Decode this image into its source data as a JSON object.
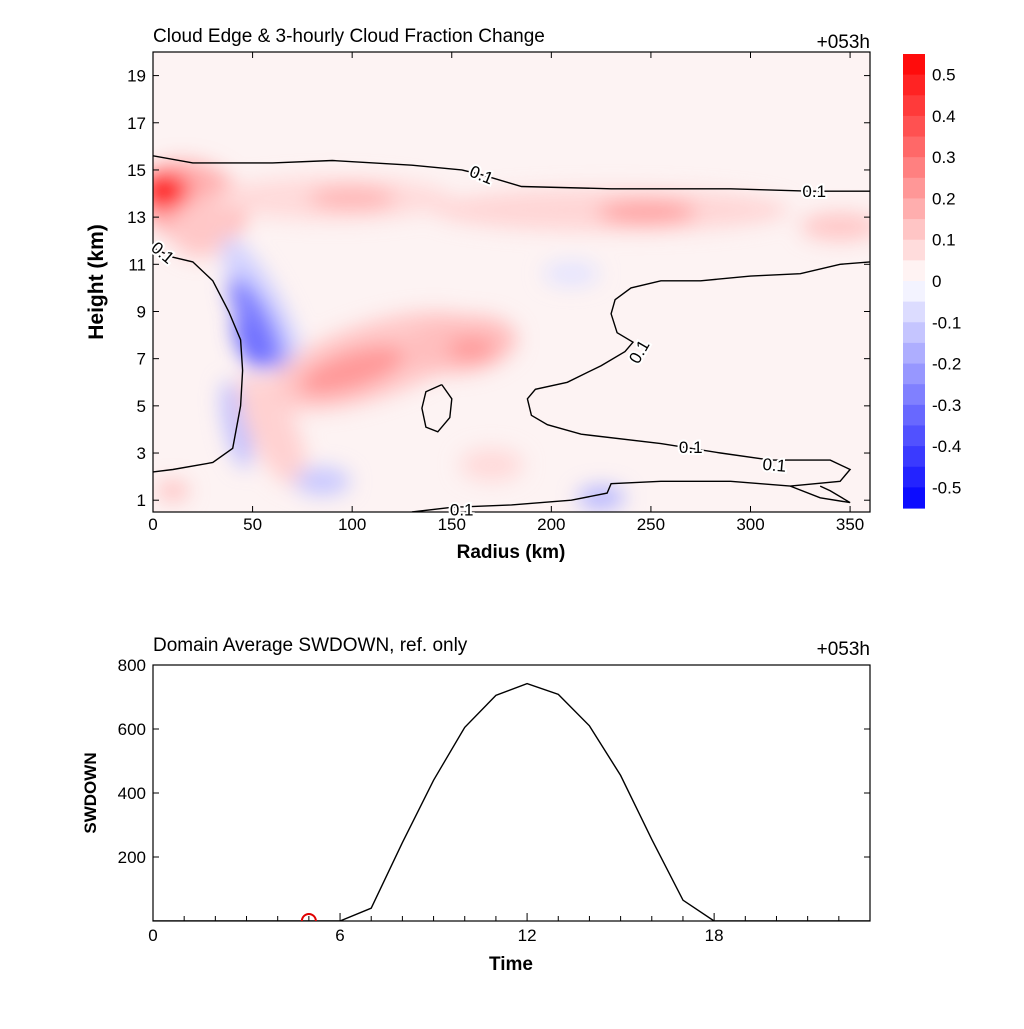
{
  "chart_data": [
    {
      "type": "heatmap",
      "title": "Cloud Edge & 3-hourly Cloud Fraction Change",
      "time_label": "+053h",
      "xlabel": "Radius (km)",
      "ylabel": "Height (km)",
      "xlim": [
        0,
        360
      ],
      "ylim": [
        0.5,
        20
      ],
      "x_ticks": [
        0,
        50,
        100,
        150,
        200,
        250,
        300,
        350
      ],
      "y_ticks": [
        1,
        3,
        5,
        7,
        9,
        11,
        13,
        15,
        17,
        19
      ],
      "colorbar": {
        "ticks": [
          "0.5",
          "0.4",
          "0.3",
          "0.2",
          "0.1",
          "0",
          "-0.1",
          "-0.2",
          "-0.3",
          "-0.4",
          "-0.5"
        ],
        "levels": [
          0.55,
          0.5,
          0.45,
          0.4,
          0.35,
          0.3,
          0.25,
          0.2,
          0.15,
          0.1,
          0.05,
          0,
          -0.05,
          -0.1,
          -0.15,
          -0.2,
          -0.25,
          -0.3,
          -0.35,
          -0.4,
          -0.45,
          -0.5,
          -0.55
        ]
      },
      "contour_level_label": "0.1",
      "features": [
        {
          "name": "upper-anvil-increase",
          "sign": "positive",
          "peak": 0.55,
          "x": 5,
          "y": 14.2
        },
        {
          "name": "upper-band-increase",
          "sign": "positive",
          "peak": 0.15,
          "x": 100,
          "y": 13.8
        },
        {
          "name": "upper-band-east-increase",
          "sign": "positive",
          "peak": 0.2,
          "x": 245,
          "y": 13.2
        },
        {
          "name": "eyewall-decrease",
          "sign": "negative",
          "peak": -0.3,
          "x": 50,
          "y": 8.5
        },
        {
          "name": "midlevel-increase",
          "sign": "positive",
          "peak": 0.25,
          "x": 110,
          "y": 7
        },
        {
          "name": "low-level-decrease",
          "sign": "negative",
          "peak": -0.15,
          "x": 85,
          "y": 1.8
        },
        {
          "name": "low-level-decrease-east",
          "sign": "negative",
          "peak": -0.15,
          "x": 225,
          "y": 1
        }
      ]
    },
    {
      "type": "line",
      "title": "Domain Average SWDOWN, ref. only",
      "time_label": "+053h",
      "xlabel": "Time",
      "ylabel": "SWDOWN",
      "xlim": [
        0,
        23
      ],
      "ylim": [
        0,
        800
      ],
      "x_ticks": [
        0,
        6,
        12,
        18
      ],
      "y_ticks": [
        200,
        400,
        600,
        800
      ],
      "x": [
        0,
        1,
        2,
        3,
        4,
        5,
        6,
        7,
        8,
        9,
        10,
        11,
        12,
        13,
        14,
        15,
        16,
        17,
        18,
        19,
        20,
        21,
        22,
        23
      ],
      "series": [
        {
          "values": [
            0,
            0,
            0,
            0,
            0,
            0,
            0,
            40,
            245,
            440,
            605,
            705,
            742,
            708,
            610,
            455,
            255,
            65,
            0,
            0,
            0,
            0,
            0,
            0
          ]
        }
      ],
      "current_marker": {
        "x": 5,
        "y": 0,
        "color": "#e00000"
      }
    }
  ]
}
